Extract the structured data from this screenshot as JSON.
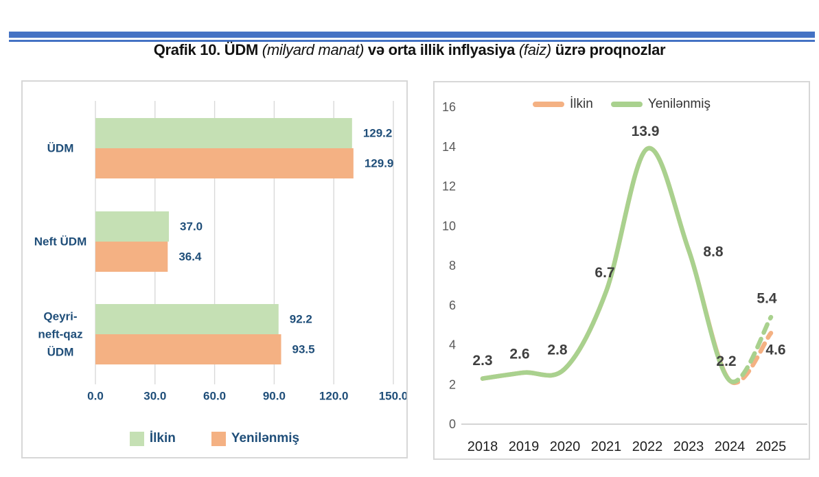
{
  "header": {
    "accent_color": "#4472C4",
    "title_parts": [
      {
        "text": "Qrafik 10. ÜDM ",
        "italic": false
      },
      {
        "text": "(milyard manat)",
        "italic": true
      },
      {
        "text": " və orta illik inflyasiya ",
        "italic": false
      },
      {
        "text": "(faiz)",
        "italic": true
      },
      {
        "text": " üzrə proqnozlar",
        "italic": false
      }
    ]
  },
  "colors": {
    "accent_blue": "#4472C4",
    "bar_green": "#C5E0B4",
    "bar_orange": "#F4B183",
    "line_green": "#A9D18E",
    "line_orange": "#F4B183",
    "navy_text": "#1F4E79",
    "axis_gray_text": "#595959",
    "year_text": "#1F1F1F",
    "data_label_text": "#3F3F3F",
    "gridline": "#D9D9D9",
    "baseline": "#C6C6C6",
    "panel_border": "#D7D7D7"
  },
  "chart_data": [
    {
      "id": "gdp_bars",
      "type": "bar",
      "orientation": "horizontal",
      "categories": [
        "ÜDM",
        "Neft ÜDM",
        "Qeyri-neft-qaz ÜDM"
      ],
      "category_display_lines": [
        [
          "ÜDM"
        ],
        [
          "Neft ÜDM"
        ],
        [
          "Qeyri-",
          "neft-qaz",
          "ÜDM"
        ]
      ],
      "series": [
        {
          "name": "İlkin",
          "color": "#C5E0B4",
          "values": [
            129.2,
            37.0,
            92.2
          ]
        },
        {
          "name": "Yenilənmiş",
          "color": "#F4B183",
          "values": [
            129.9,
            36.4,
            93.5
          ]
        }
      ],
      "value_labels": [
        [
          "129.2",
          "37.0",
          "92.2"
        ],
        [
          "129.9",
          "36.4",
          "93.5"
        ]
      ],
      "x_ticks": [
        "0.0",
        "30.0",
        "60.0",
        "90.0",
        "120.0",
        "150.0"
      ],
      "xlim": [
        0,
        150
      ],
      "grid": true,
      "legend": {
        "position": "bottom",
        "items": [
          {
            "label": "İlkin",
            "color": "#C5E0B4"
          },
          {
            "label": "Yenilənmiş",
            "color": "#F4B183"
          }
        ]
      }
    },
    {
      "id": "inflation_lines",
      "type": "line",
      "smooth": true,
      "x": [
        2018,
        2019,
        2020,
        2021,
        2022,
        2023,
        2024,
        2025
      ],
      "series": [
        {
          "name": "İlkin",
          "color": "#F4B183",
          "values": [
            2.3,
            2.6,
            2.8,
            6.7,
            13.9,
            8.8,
            2.2,
            4.6
          ],
          "dashed_from_x": 2024,
          "labeled_x": [
            2025
          ]
        },
        {
          "name": "Yenilənmiş",
          "color": "#A9D18E",
          "values": [
            2.3,
            2.6,
            2.8,
            6.7,
            13.9,
            8.8,
            2.2,
            5.4
          ],
          "dashed_from_x": 2024,
          "labeled_x": [
            2018,
            2019,
            2020,
            2021,
            2022,
            2023,
            2024,
            2025
          ]
        }
      ],
      "y_ticks": [
        0,
        2,
        4,
        6,
        8,
        10,
        12,
        14,
        16
      ],
      "ylim": [
        0,
        16
      ],
      "grid": false,
      "legend": {
        "position": "top",
        "items": [
          {
            "label": "İlkin",
            "color": "#F4B183"
          },
          {
            "label": "Yenilənmiş",
            "color": "#A9D18E"
          }
        ]
      }
    }
  ]
}
